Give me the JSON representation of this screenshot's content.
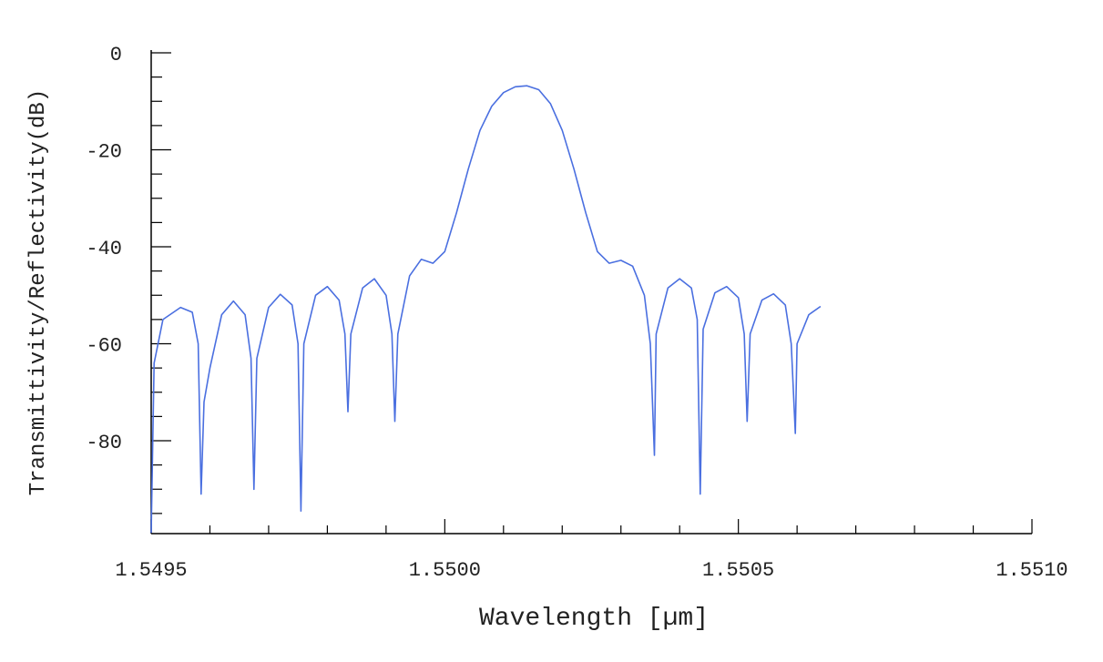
{
  "chart_data": {
    "type": "line",
    "title": "",
    "xlabel": "Wavelength [µm]",
    "ylabel": "Transmittivity/Reflectivity(dB)",
    "xlim": [
      1.5495,
      1.551
    ],
    "ylim": [
      -100,
      0
    ],
    "x_ticks": [
      1.5495,
      1.55,
      1.5505,
      1.551
    ],
    "x_tick_labels": [
      "1.5495",
      "1.5500",
      "1.5505",
      "1.5510"
    ],
    "y_ticks": [
      0,
      -20,
      -40,
      -60,
      -80
    ],
    "y_tick_labels": [
      "0",
      "-20",
      "-40",
      "-60",
      "-80"
    ],
    "grid": false,
    "series_color": "#4a6fe0",
    "series": [
      {
        "points": [
          [
            1.5495,
            -99
          ],
          [
            1.549505,
            -64
          ],
          [
            1.54952,
            -55
          ],
          [
            1.54955,
            -52.5
          ],
          [
            1.54957,
            -53.5
          ],
          [
            1.54958,
            -60
          ],
          [
            1.54959,
            -72
          ],
          [
            1.549585,
            -91
          ],
          [
            1.5496,
            -65
          ],
          [
            1.54962,
            -54
          ],
          [
            1.54964,
            -51.2
          ],
          [
            1.54966,
            -54
          ],
          [
            1.54967,
            -63
          ],
          [
            1.549675,
            -90
          ],
          [
            1.54968,
            -63
          ],
          [
            1.5497,
            -52.5
          ],
          [
            1.54972,
            -49.8
          ],
          [
            1.54974,
            -52
          ],
          [
            1.54975,
            -60
          ],
          [
            1.549755,
            -94.5
          ],
          [
            1.54976,
            -60
          ],
          [
            1.54978,
            -50
          ],
          [
            1.5498,
            -48.2
          ],
          [
            1.54982,
            -51
          ],
          [
            1.54983,
            -58
          ],
          [
            1.549835,
            -74
          ],
          [
            1.54984,
            -58
          ],
          [
            1.54986,
            -48.5
          ],
          [
            1.54988,
            -46.6
          ],
          [
            1.5499,
            -50
          ],
          [
            1.54991,
            -58
          ],
          [
            1.549915,
            -76
          ],
          [
            1.54992,
            -58
          ],
          [
            1.54994,
            -46
          ],
          [
            1.54996,
            -42.6
          ],
          [
            1.54998,
            -43.4
          ],
          [
            1.55,
            -41
          ],
          [
            1.55002,
            -33
          ],
          [
            1.55004,
            -24
          ],
          [
            1.55006,
            -16
          ],
          [
            1.55008,
            -11
          ],
          [
            1.5501,
            -8.2
          ],
          [
            1.55012,
            -7
          ],
          [
            1.55014,
            -6.8
          ],
          [
            1.55016,
            -7.6
          ],
          [
            1.55018,
            -10.5
          ],
          [
            1.5502,
            -16
          ],
          [
            1.55022,
            -24
          ],
          [
            1.55024,
            -33
          ],
          [
            1.55026,
            -41
          ],
          [
            1.55028,
            -43.4
          ],
          [
            1.5503,
            -42.8
          ],
          [
            1.55032,
            -44
          ],
          [
            1.55034,
            -50
          ],
          [
            1.55035,
            -60
          ],
          [
            1.550357,
            -83
          ],
          [
            1.55036,
            -58
          ],
          [
            1.55038,
            -48.5
          ],
          [
            1.5504,
            -46.6
          ],
          [
            1.55042,
            -48.5
          ],
          [
            1.55043,
            -55
          ],
          [
            1.550435,
            -91
          ],
          [
            1.55044,
            -57
          ],
          [
            1.55046,
            -49.5
          ],
          [
            1.55048,
            -48.2
          ],
          [
            1.5505,
            -50.5
          ],
          [
            1.55051,
            -58
          ],
          [
            1.550515,
            -76
          ],
          [
            1.55052,
            -58
          ],
          [
            1.55054,
            -51
          ],
          [
            1.55056,
            -49.7
          ],
          [
            1.55058,
            -52
          ],
          [
            1.55059,
            -60
          ],
          [
            1.550597,
            -78.5
          ],
          [
            1.5506,
            -60
          ],
          [
            1.55062,
            -54
          ],
          [
            1.55064,
            -52.3
          ]
        ]
      }
    ]
  }
}
